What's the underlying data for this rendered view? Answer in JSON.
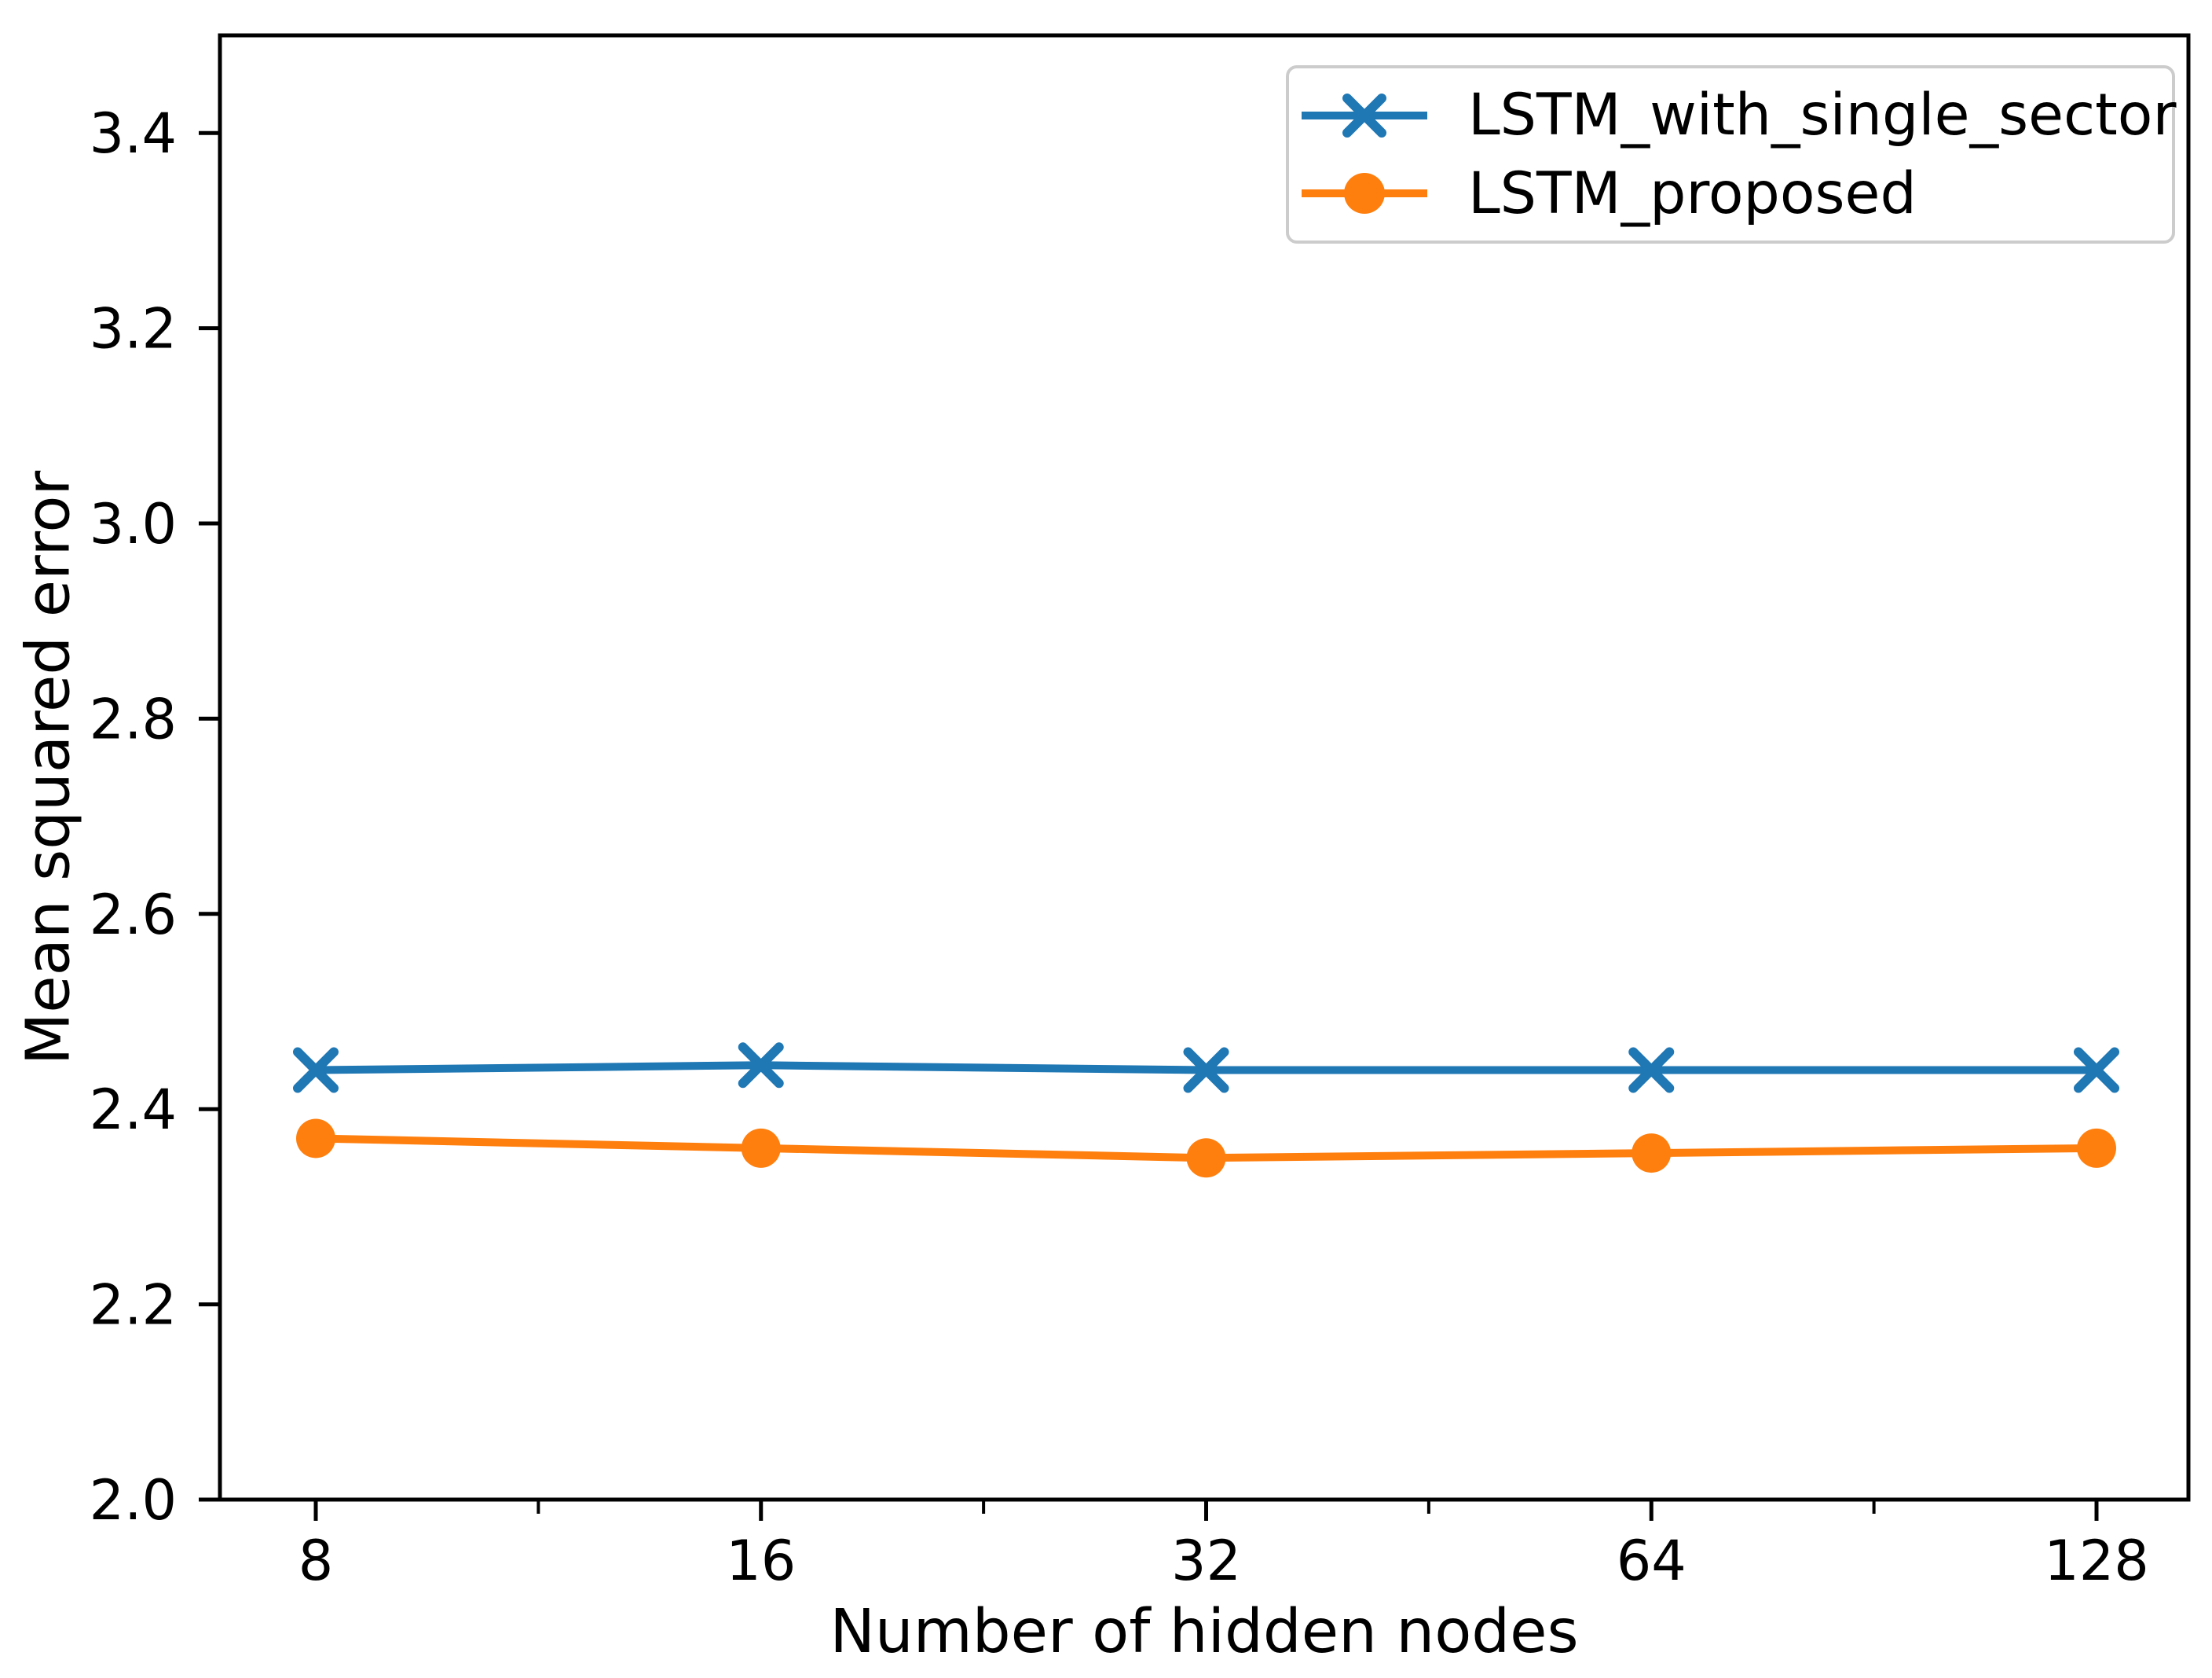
{
  "chart_data": {
    "type": "line",
    "title": "",
    "xlabel": "Number of hidden nodes",
    "ylabel": "Mean squared error",
    "x_scale": "log2",
    "x": [
      8,
      16,
      32,
      64,
      128
    ],
    "xtick_labels": [
      "8",
      "16",
      "32",
      "64",
      "128"
    ],
    "ytick_labels": [
      "2.0",
      "2.2",
      "2.4",
      "2.6",
      "2.8",
      "3.0",
      "3.2",
      "3.4"
    ],
    "ylim": [
      2.0,
      3.5
    ],
    "grid": false,
    "legend_position": "upper right",
    "series": [
      {
        "name": "LSTM_with_single_sector",
        "color": "#1f77b4",
        "marker": "x",
        "values": [
          2.44,
          2.445,
          2.44,
          2.44,
          2.44
        ]
      },
      {
        "name": "LSTM_proposed",
        "color": "#ff7f0e",
        "marker": "circle",
        "values": [
          2.37,
          2.36,
          2.35,
          2.355,
          2.36
        ]
      }
    ]
  }
}
